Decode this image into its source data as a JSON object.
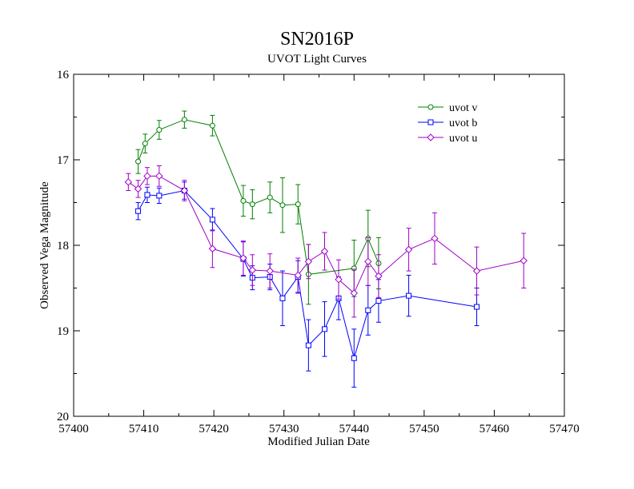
{
  "chart_data": {
    "type": "line",
    "title": "SN2016P",
    "subtitle": "UVOT Light Curves",
    "xlabel": "Modified Julian Date",
    "ylabel": "Observed Vega Magnitude",
    "xlim": [
      57400,
      57470
    ],
    "ylim": [
      16,
      20
    ],
    "y_inverted": true,
    "x_ticks": [
      57400,
      57410,
      57420,
      57430,
      57440,
      57450,
      57460,
      57470
    ],
    "y_ticks": [
      16,
      17,
      18,
      19,
      20
    ],
    "grid": false,
    "legend_position": "top-right",
    "series": [
      {
        "name": "uvot v",
        "color": "#008000",
        "marker": "circle",
        "points": [
          {
            "x": 57409.2,
            "y": 17.02,
            "err": 0.14
          },
          {
            "x": 57410.2,
            "y": 16.81,
            "err": 0.11
          },
          {
            "x": 57412.2,
            "y": 16.65,
            "err": 0.11
          },
          {
            "x": 57415.8,
            "y": 16.53,
            "err": 0.1
          },
          {
            "x": 57419.8,
            "y": 16.6,
            "err": 0.12
          },
          {
            "x": 57424.2,
            "y": 17.48,
            "err": 0.18
          },
          {
            "x": 57425.5,
            "y": 17.52,
            "err": 0.17
          },
          {
            "x": 57428.0,
            "y": 17.44,
            "err": 0.18
          },
          {
            "x": 57429.8,
            "y": 17.53,
            "err": 0.32
          },
          {
            "x": 57432.0,
            "y": 17.52,
            "err": 0.23
          },
          {
            "x": 57433.5,
            "y": 18.34,
            "err": 0.35
          },
          {
            "x": 57440.0,
            "y": 18.27,
            "err": 0.33
          },
          {
            "x": 57442.0,
            "y": 17.92,
            "err": 0.33
          },
          {
            "x": 57443.5,
            "y": 18.21,
            "err": 0.3
          }
        ]
      },
      {
        "name": "uvot b",
        "color": "#0000ff",
        "marker": "square",
        "points": [
          {
            "x": 57409.2,
            "y": 17.6,
            "err": 0.1
          },
          {
            "x": 57410.5,
            "y": 17.41,
            "err": 0.09
          },
          {
            "x": 57412.2,
            "y": 17.42,
            "err": 0.09
          },
          {
            "x": 57415.8,
            "y": 17.36,
            "err": 0.1
          },
          {
            "x": 57419.8,
            "y": 17.7,
            "err": 0.13
          },
          {
            "x": 57424.2,
            "y": 18.16,
            "err": 0.2
          },
          {
            "x": 57425.5,
            "y": 18.38,
            "err": 0.14
          },
          {
            "x": 57428.0,
            "y": 18.37,
            "err": 0.15
          },
          {
            "x": 57429.8,
            "y": 18.62,
            "err": 0.32
          },
          {
            "x": 57432.0,
            "y": 18.37,
            "err": 0.19
          },
          {
            "x": 57433.5,
            "y": 19.17,
            "err": 0.3
          },
          {
            "x": 57435.8,
            "y": 18.98,
            "err": 0.32
          },
          {
            "x": 57437.8,
            "y": 18.62,
            "err": 0.25
          },
          {
            "x": 57440.0,
            "y": 19.32,
            "err": 0.34
          },
          {
            "x": 57442.0,
            "y": 18.76,
            "err": 0.29
          },
          {
            "x": 57443.5,
            "y": 18.65,
            "err": 0.25
          },
          {
            "x": 57447.8,
            "y": 18.59,
            "err": 0.24
          },
          {
            "x": 57457.5,
            "y": 18.72,
            "err": 0.22
          }
        ]
      },
      {
        "name": "uvot u",
        "color": "#a000c8",
        "marker": "diamond",
        "points": [
          {
            "x": 57407.8,
            "y": 17.26,
            "err": 0.1
          },
          {
            "x": 57409.2,
            "y": 17.34,
            "err": 0.1
          },
          {
            "x": 57410.5,
            "y": 17.19,
            "err": 0.1
          },
          {
            "x": 57412.2,
            "y": 17.19,
            "err": 0.12
          },
          {
            "x": 57415.8,
            "y": 17.36,
            "err": 0.12
          },
          {
            "x": 57419.8,
            "y": 18.04,
            "err": 0.22
          },
          {
            "x": 57424.2,
            "y": 18.15,
            "err": 0.2
          },
          {
            "x": 57425.5,
            "y": 18.29,
            "err": 0.18
          },
          {
            "x": 57428.0,
            "y": 18.3,
            "err": 0.2
          },
          {
            "x": 57432.0,
            "y": 18.35,
            "err": 0.2
          },
          {
            "x": 57433.5,
            "y": 18.19,
            "err": 0.2
          },
          {
            "x": 57435.8,
            "y": 18.07,
            "err": 0.22
          },
          {
            "x": 57437.8,
            "y": 18.4,
            "err": 0.23
          },
          {
            "x": 57440.0,
            "y": 18.56,
            "err": 0.28
          },
          {
            "x": 57442.0,
            "y": 18.19,
            "err": 0.28
          },
          {
            "x": 57443.5,
            "y": 18.36,
            "err": 0.25
          },
          {
            "x": 57447.8,
            "y": 18.05,
            "err": 0.25
          },
          {
            "x": 57451.5,
            "y": 17.92,
            "err": 0.3
          },
          {
            "x": 57457.5,
            "y": 18.3,
            "err": 0.28
          },
          {
            "x": 57464.2,
            "y": 18.18,
            "err": 0.32
          }
        ]
      }
    ]
  }
}
